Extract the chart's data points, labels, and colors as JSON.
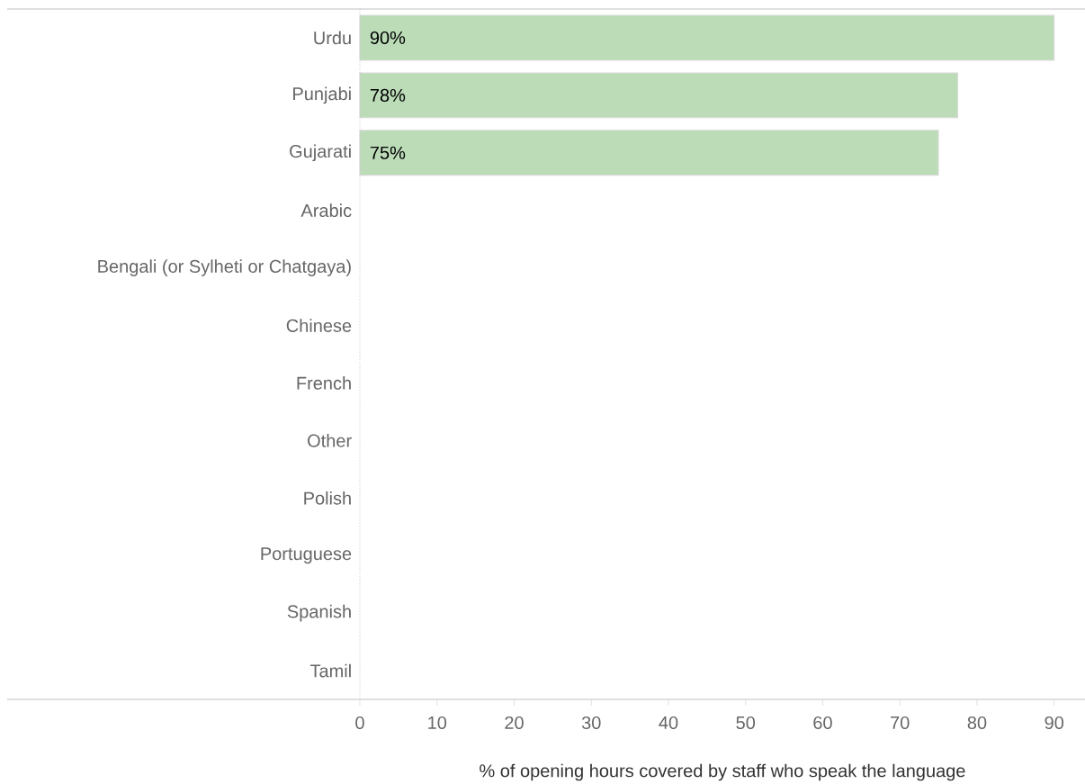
{
  "chart_data": {
    "type": "bar",
    "orientation": "horizontal",
    "xlabel": "% of opening hours covered by staff who speak the language",
    "categories": [
      "Urdu",
      "Punjabi",
      "Gujarati",
      "Arabic",
      "Bengali (or Sylheti or Chatgaya)",
      "Chinese",
      "French",
      "Other",
      "Polish",
      "Portuguese",
      "Spanish",
      "Tamil"
    ],
    "values": [
      90,
      77.5,
      75,
      null,
      null,
      null,
      null,
      null,
      null,
      null,
      null,
      null
    ],
    "value_labels": [
      "90%",
      "78%",
      "75%",
      null,
      null,
      null,
      null,
      null,
      null,
      null,
      null,
      null
    ],
    "color": "#bcdcb8",
    "xlim": [
      0,
      94
    ],
    "xticks": [
      0,
      10,
      20,
      30,
      40,
      50,
      60,
      70,
      80,
      90
    ],
    "grid": false
  }
}
